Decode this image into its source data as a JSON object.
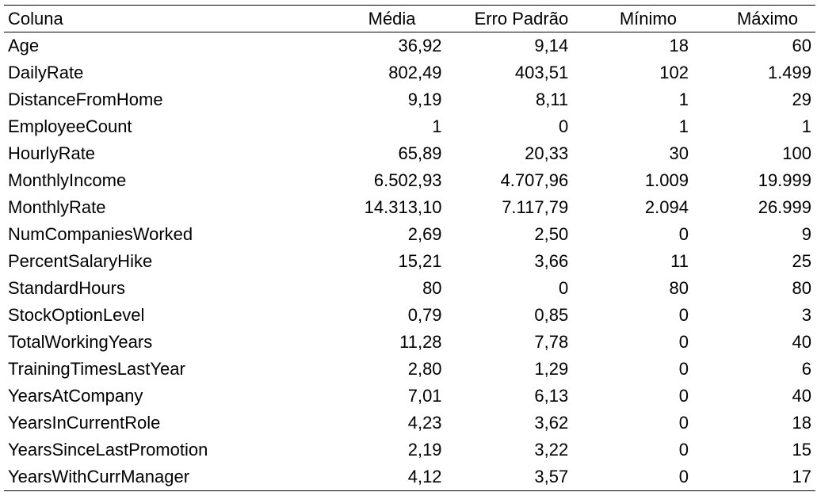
{
  "table": {
    "headers": [
      "Coluna",
      "Média",
      "Erro Padrão",
      "Mínimo",
      "Máximo"
    ],
    "rows": [
      [
        "Age",
        "36,92",
        "9,14",
        "18",
        "60"
      ],
      [
        "DailyRate",
        "802,49",
        "403,51",
        "102",
        "1.499"
      ],
      [
        "DistanceFromHome",
        "9,19",
        "8,11",
        "1",
        "29"
      ],
      [
        "EmployeeCount",
        "1",
        "0",
        "1",
        "1"
      ],
      [
        "HourlyRate",
        "65,89",
        "20,33",
        "30",
        "100"
      ],
      [
        "MonthlyIncome",
        "6.502,93",
        "4.707,96",
        "1.009",
        "19.999"
      ],
      [
        "MonthlyRate",
        "14.313,10",
        "7.117,79",
        "2.094",
        "26.999"
      ],
      [
        "NumCompaniesWorked",
        "2,69",
        "2,50",
        "0",
        "9"
      ],
      [
        "PercentSalaryHike",
        "15,21",
        "3,66",
        "11",
        "25"
      ],
      [
        "StandardHours",
        "80",
        "0",
        "80",
        "80"
      ],
      [
        "StockOptionLevel",
        "0,79",
        "0,85",
        "0",
        "3"
      ],
      [
        "TotalWorkingYears",
        "11,28",
        "7,78",
        "0",
        "40"
      ],
      [
        "TrainingTimesLastYear",
        "2,80",
        "1,29",
        "0",
        "6"
      ],
      [
        "YearsAtCompany",
        "7,01",
        "6,13",
        "0",
        "40"
      ],
      [
        "YearsInCurrentRole",
        "4,23",
        "3,62",
        "0",
        "18"
      ],
      [
        "YearsSinceLastPromotion",
        "2,19",
        "3,22",
        "0",
        "15"
      ],
      [
        "YearsWithCurrManager",
        "4,12",
        "3,57",
        "0",
        "17"
      ]
    ]
  }
}
